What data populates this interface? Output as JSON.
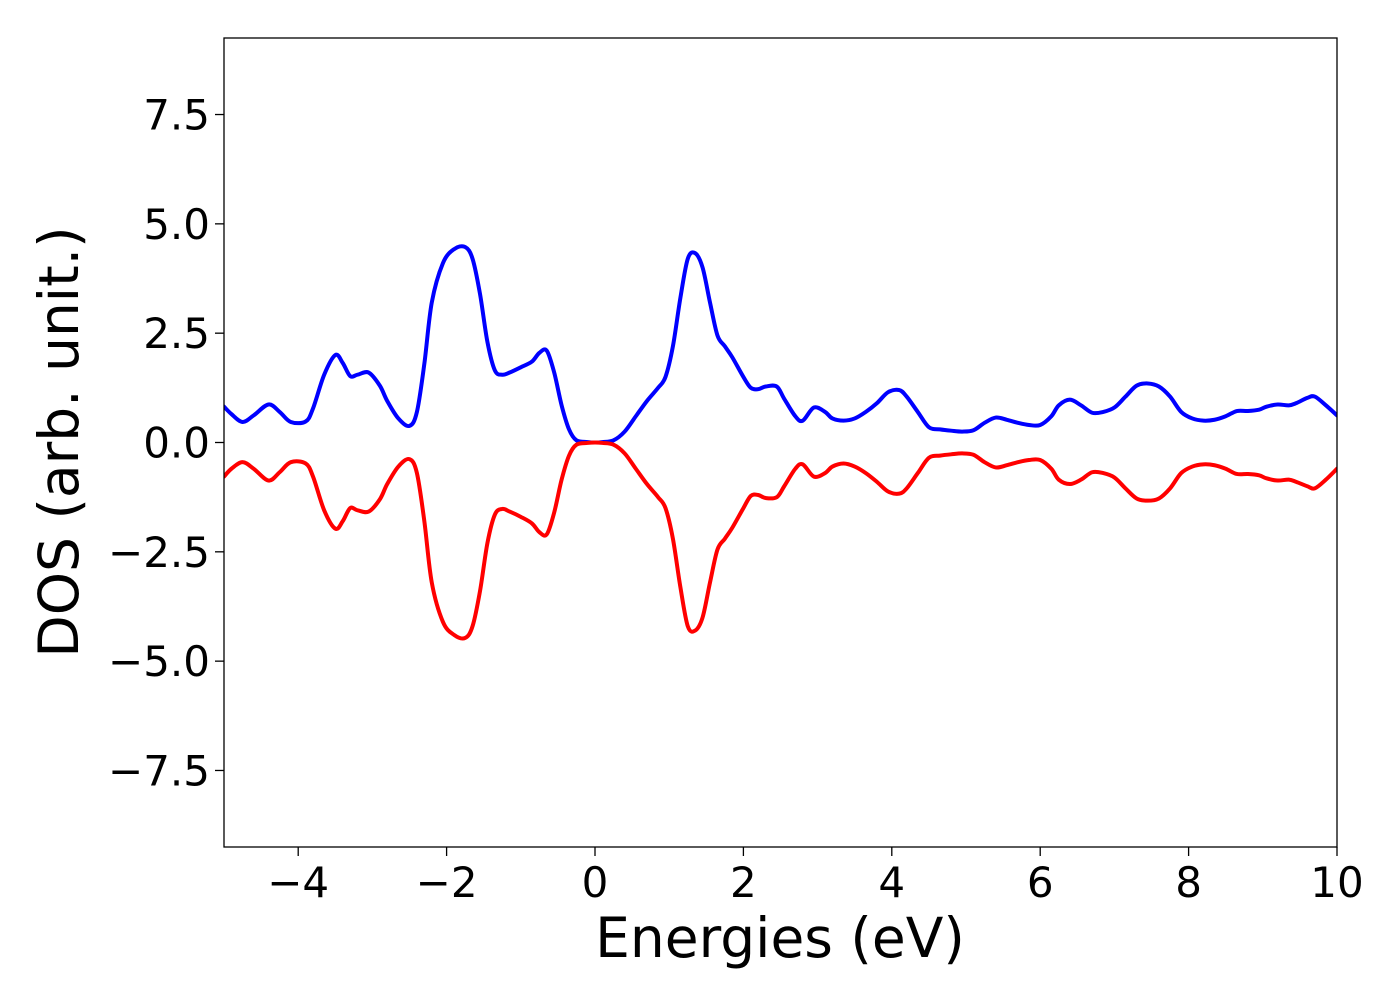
{
  "chart_data": {
    "type": "line",
    "title": "",
    "xlabel": "Energies (eV)",
    "ylabel": "DOS (arb. unit.)",
    "xlim": [
      -5,
      10
    ],
    "ylim": [
      -9.25,
      9.25
    ],
    "x_ticks": [
      -4,
      -2,
      0,
      2,
      4,
      6,
      8,
      10
    ],
    "x_tick_labels": [
      "−4",
      "−2",
      "0",
      "2",
      "4",
      "6",
      "8",
      "10"
    ],
    "y_ticks": [
      7.5,
      5.0,
      2.5,
      0.0,
      -2.5,
      -5.0,
      -7.5
    ],
    "y_tick_labels": [
      "7.5",
      "5.0",
      "2.5",
      "0.0",
      "−2.5",
      "−5.0",
      "−7.5"
    ],
    "grid": false,
    "legend": "none",
    "series": [
      {
        "color": "#0000ff",
        "x": [
          -5.0,
          -4.9,
          -4.75,
          -4.6,
          -4.4,
          -4.25,
          -4.1,
          -3.9,
          -3.8,
          -3.65,
          -3.5,
          -3.4,
          -3.3,
          -3.2,
          -3.05,
          -2.9,
          -2.8,
          -2.65,
          -2.5,
          -2.4,
          -2.3,
          -2.2,
          -2.05,
          -1.9,
          -1.75,
          -1.65,
          -1.55,
          -1.45,
          -1.35,
          -1.25,
          -1.15,
          -1.0,
          -0.85,
          -0.75,
          -0.65,
          -0.55,
          -0.45,
          -0.35,
          -0.25,
          -0.1,
          0.0,
          0.1,
          0.25,
          0.4,
          0.55,
          0.7,
          0.85,
          0.95,
          1.05,
          1.15,
          1.25,
          1.35,
          1.45,
          1.55,
          1.65,
          1.75,
          1.85,
          2.0,
          2.1,
          2.2,
          2.3,
          2.45,
          2.55,
          2.7,
          2.8,
          2.95,
          3.1,
          3.2,
          3.35,
          3.5,
          3.65,
          3.8,
          3.95,
          4.1,
          4.2,
          4.35,
          4.5,
          4.65,
          4.8,
          4.95,
          5.1,
          5.25,
          5.4,
          5.55,
          5.7,
          5.85,
          6.0,
          6.15,
          6.25,
          6.4,
          6.55,
          6.7,
          6.85,
          7.0,
          7.15,
          7.3,
          7.45,
          7.6,
          7.75,
          7.9,
          8.05,
          8.2,
          8.35,
          8.5,
          8.65,
          8.8,
          8.95,
          9.05,
          9.2,
          9.35,
          9.45,
          9.6,
          9.7,
          9.85,
          10.0
        ],
        "values": [
          0.82,
          0.65,
          0.47,
          0.62,
          0.87,
          0.7,
          0.47,
          0.48,
          0.78,
          1.55,
          2.0,
          1.82,
          1.52,
          1.55,
          1.6,
          1.3,
          0.95,
          0.55,
          0.38,
          0.7,
          1.8,
          3.2,
          4.1,
          4.42,
          4.47,
          4.2,
          3.4,
          2.3,
          1.65,
          1.55,
          1.6,
          1.72,
          1.85,
          2.05,
          2.1,
          1.6,
          0.85,
          0.3,
          0.05,
          0.01,
          0.0,
          0.01,
          0.05,
          0.25,
          0.6,
          0.95,
          1.25,
          1.5,
          2.2,
          3.3,
          4.2,
          4.33,
          4.0,
          3.2,
          2.45,
          2.2,
          1.95,
          1.5,
          1.25,
          1.22,
          1.28,
          1.28,
          1.0,
          0.6,
          0.5,
          0.8,
          0.7,
          0.55,
          0.5,
          0.55,
          0.7,
          0.9,
          1.15,
          1.2,
          1.05,
          0.7,
          0.35,
          0.3,
          0.27,
          0.25,
          0.28,
          0.45,
          0.57,
          0.52,
          0.45,
          0.4,
          0.4,
          0.6,
          0.85,
          0.98,
          0.85,
          0.68,
          0.7,
          0.8,
          1.05,
          1.3,
          1.35,
          1.28,
          1.05,
          0.7,
          0.55,
          0.5,
          0.52,
          0.6,
          0.72,
          0.72,
          0.75,
          0.82,
          0.87,
          0.85,
          0.9,
          1.02,
          1.05,
          0.85,
          0.62
        ]
      },
      {
        "color": "#ff0000",
        "x": [
          -5.0,
          -4.9,
          -4.75,
          -4.6,
          -4.4,
          -4.25,
          -4.1,
          -3.9,
          -3.8,
          -3.65,
          -3.5,
          -3.4,
          -3.3,
          -3.2,
          -3.05,
          -2.9,
          -2.8,
          -2.65,
          -2.5,
          -2.4,
          -2.3,
          -2.2,
          -2.05,
          -1.9,
          -1.75,
          -1.65,
          -1.55,
          -1.45,
          -1.35,
          -1.25,
          -1.15,
          -1.0,
          -0.85,
          -0.75,
          -0.65,
          -0.55,
          -0.45,
          -0.35,
          -0.25,
          -0.1,
          0.0,
          0.1,
          0.25,
          0.4,
          0.55,
          0.7,
          0.85,
          0.95,
          1.05,
          1.15,
          1.25,
          1.35,
          1.45,
          1.55,
          1.65,
          1.75,
          1.85,
          2.0,
          2.1,
          2.2,
          2.3,
          2.45,
          2.55,
          2.7,
          2.8,
          2.95,
          3.1,
          3.2,
          3.35,
          3.5,
          3.65,
          3.8,
          3.95,
          4.1,
          4.2,
          4.35,
          4.5,
          4.65,
          4.8,
          4.95,
          5.1,
          5.25,
          5.4,
          5.55,
          5.7,
          5.85,
          6.0,
          6.15,
          6.25,
          6.4,
          6.55,
          6.7,
          6.85,
          7.0,
          7.15,
          7.3,
          7.45,
          7.6,
          7.75,
          7.9,
          8.05,
          8.2,
          8.35,
          8.5,
          8.65,
          8.8,
          8.95,
          9.05,
          9.2,
          9.35,
          9.45,
          9.6,
          9.7,
          9.85,
          10.0
        ],
        "values": [
          -0.78,
          -0.6,
          -0.45,
          -0.6,
          -0.87,
          -0.68,
          -0.45,
          -0.48,
          -0.78,
          -1.55,
          -1.97,
          -1.8,
          -1.5,
          -1.55,
          -1.58,
          -1.3,
          -0.95,
          -0.55,
          -0.38,
          -0.7,
          -1.8,
          -3.2,
          -4.1,
          -4.4,
          -4.47,
          -4.2,
          -3.4,
          -2.3,
          -1.65,
          -1.52,
          -1.58,
          -1.7,
          -1.85,
          -2.05,
          -2.1,
          -1.6,
          -0.85,
          -0.3,
          -0.05,
          -0.01,
          0.0,
          -0.01,
          -0.05,
          -0.25,
          -0.6,
          -0.95,
          -1.25,
          -1.5,
          -2.2,
          -3.3,
          -4.2,
          -4.3,
          -4.0,
          -3.2,
          -2.45,
          -2.2,
          -1.95,
          -1.5,
          -1.22,
          -1.2,
          -1.27,
          -1.25,
          -1.0,
          -0.6,
          -0.5,
          -0.78,
          -0.7,
          -0.55,
          -0.48,
          -0.55,
          -0.7,
          -0.9,
          -1.12,
          -1.17,
          -1.05,
          -0.7,
          -0.35,
          -0.3,
          -0.27,
          -0.25,
          -0.28,
          -0.45,
          -0.57,
          -0.52,
          -0.45,
          -0.4,
          -0.4,
          -0.6,
          -0.85,
          -0.95,
          -0.85,
          -0.68,
          -0.7,
          -0.8,
          -1.05,
          -1.28,
          -1.33,
          -1.28,
          -1.05,
          -0.7,
          -0.55,
          -0.5,
          -0.52,
          -0.6,
          -0.72,
          -0.72,
          -0.75,
          -0.82,
          -0.87,
          -0.85,
          -0.9,
          -1.0,
          -1.05,
          -0.85,
          -0.6
        ]
      }
    ]
  }
}
